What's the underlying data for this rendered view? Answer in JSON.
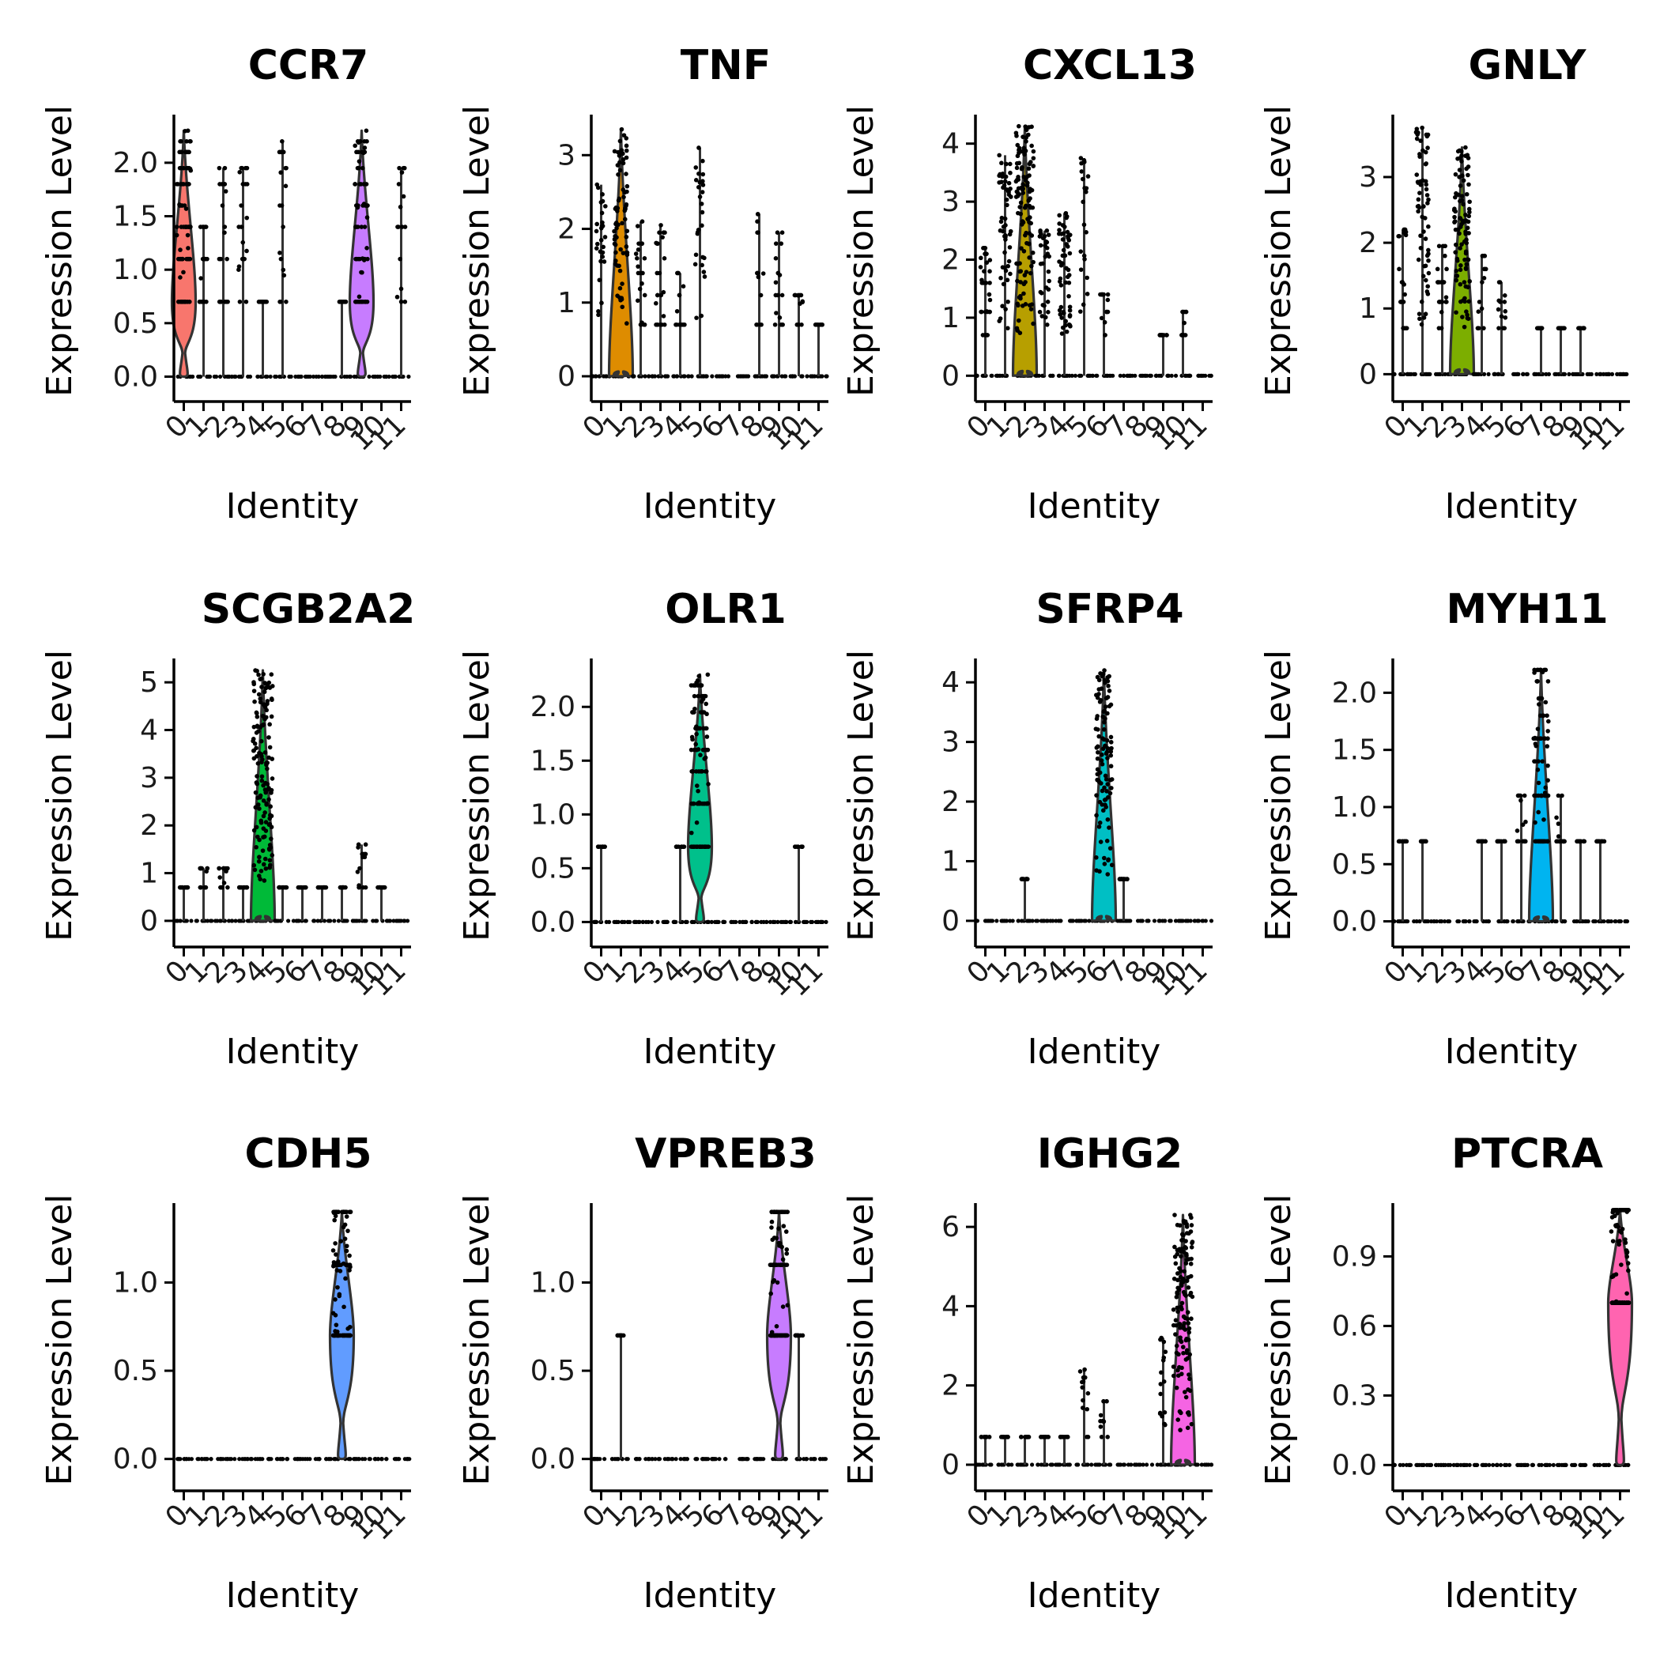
{
  "chart_data": {
    "type": "violin",
    "xlabel": "Identity",
    "ylabel": "Expression Level",
    "categories": [
      "0",
      "1",
      "2",
      "3",
      "4",
      "5",
      "6",
      "7",
      "8",
      "9",
      "10",
      "11"
    ],
    "cluster_colors": [
      "#F8766D",
      "#DE8C00",
      "#B79F00",
      "#7CAE00",
      "#00BA38",
      "#00C08B",
      "#00BFC4",
      "#00B4F0",
      "#619CFF",
      "#C77CFF",
      "#F564E3",
      "#FF64B0"
    ],
    "panels": [
      {
        "title": "CCR7",
        "ylim": [
          -0.1,
          2.45
        ],
        "ticks": [
          0,
          0.5,
          1,
          1.5,
          2
        ],
        "tick_labels": [
          "0.0",
          "0.5",
          "1.0",
          "1.5",
          "2.0"
        ],
        "max": [
          2.3,
          1.4,
          1.95,
          1.95,
          0.7,
          2.2,
          0,
          0,
          0.7,
          2.3,
          0,
          1.95
        ],
        "pct": [
          0.45,
          0.06,
          0.08,
          0.08,
          0.02,
          0.07,
          0,
          0,
          0.02,
          0.4,
          0,
          0.05
        ],
        "mode": [
          0.7,
          0,
          0,
          0,
          0,
          0,
          0,
          0,
          0,
          0.7,
          0,
          0
        ],
        "violin": [
          0,
          9
        ]
      },
      {
        "title": "TNF",
        "ylim": [
          -0.15,
          3.55
        ],
        "ticks": [
          0,
          1,
          2,
          3
        ],
        "tick_labels": [
          "0",
          "1",
          "2",
          "3"
        ],
        "max": [
          2.6,
          3.35,
          2.1,
          2.05,
          1.4,
          3.1,
          0,
          0,
          2.2,
          1.95,
          1.1,
          0.7
        ],
        "pct": [
          0.12,
          0.4,
          0.1,
          0.1,
          0.06,
          0.12,
          0,
          0,
          0.04,
          0.06,
          0.03,
          0.02
        ],
        "mode": [
          0,
          0,
          0,
          0,
          0,
          0,
          0,
          0,
          0,
          0,
          0,
          0
        ],
        "violin": [
          1
        ]
      },
      {
        "title": "CXCL13",
        "ylim": [
          -0.2,
          4.5
        ],
        "ticks": [
          0,
          1,
          2,
          3,
          4
        ],
        "tick_labels": [
          "0",
          "1",
          "2",
          "3",
          "4"
        ],
        "max": [
          2.2,
          3.8,
          4.3,
          2.5,
          2.8,
          3.75,
          1.4,
          0,
          0,
          0.7,
          1.1,
          0
        ],
        "pct": [
          0.15,
          0.3,
          0.7,
          0.15,
          0.3,
          0.08,
          0.04,
          0,
          0,
          0.02,
          0.02,
          0
        ],
        "mode": [
          0,
          0,
          0,
          0,
          0,
          0,
          0,
          0,
          0,
          0,
          0,
          0
        ],
        "violin": [
          2
        ]
      },
      {
        "title": "GNLY",
        "ylim": [
          -0.2,
          3.95
        ],
        "ticks": [
          0,
          1,
          2,
          3
        ],
        "tick_labels": [
          "0",
          "1",
          "2",
          "3"
        ],
        "max": [
          2.2,
          3.75,
          1.95,
          3.45,
          1.8,
          1.4,
          0,
          0.7,
          0.7,
          0.7,
          0,
          0
        ],
        "pct": [
          0.08,
          0.35,
          0.1,
          0.55,
          0.03,
          0.03,
          0,
          0.02,
          0.02,
          0.02,
          0,
          0
        ],
        "mode": [
          0,
          0,
          0,
          0,
          0,
          0,
          0,
          0,
          0,
          0,
          0,
          0
        ],
        "violin": [
          3
        ]
      },
      {
        "title": "SCGB2A2",
        "ylim": [
          -0.25,
          5.5
        ],
        "ticks": [
          0,
          1,
          2,
          3,
          4,
          5
        ],
        "tick_labels": [
          "0",
          "1",
          "2",
          "3",
          "4",
          "5"
        ],
        "max": [
          0.7,
          1.1,
          1.1,
          0.7,
          5.25,
          0.7,
          0.7,
          0.7,
          0.7,
          1.6,
          0.7,
          0
        ],
        "pct": [
          0.04,
          0.04,
          0.05,
          0.03,
          0.85,
          0.03,
          0.02,
          0.03,
          0.03,
          0.05,
          0.03,
          0
        ],
        "mode": [
          0,
          0,
          0,
          0,
          0,
          0,
          0,
          0,
          0,
          0,
          0,
          0
        ],
        "violin": [
          4
        ]
      },
      {
        "title": "OLR1",
        "ylim": [
          -0.1,
          2.45
        ],
        "ticks": [
          0,
          0.5,
          1,
          1.5,
          2
        ],
        "tick_labels": [
          "0.0",
          "0.5",
          "1.0",
          "1.5",
          "2.0"
        ],
        "max": [
          0.7,
          0,
          0,
          0,
          0.7,
          2.3,
          0,
          0,
          0,
          0,
          0.7,
          0
        ],
        "pct": [
          0.01,
          0,
          0,
          0,
          0.02,
          0.7,
          0,
          0,
          0,
          0,
          0.01,
          0
        ],
        "mode": [
          0,
          0,
          0,
          0,
          0,
          0.7,
          0,
          0,
          0,
          0,
          0,
          0
        ],
        "violin": [
          5
        ]
      },
      {
        "title": "SFRP4",
        "ylim": [
          -0.2,
          4.4
        ],
        "ticks": [
          0,
          1,
          2,
          3,
          4
        ],
        "tick_labels": [
          "0",
          "1",
          "2",
          "3",
          "4"
        ],
        "max": [
          0,
          0,
          0.7,
          0,
          0,
          0,
          4.2,
          0.7,
          0,
          0,
          0,
          0
        ],
        "pct": [
          0,
          0,
          0.01,
          0,
          0,
          0,
          0.6,
          0.03,
          0,
          0,
          0,
          0
        ],
        "mode": [
          0,
          0,
          0,
          0,
          0,
          0,
          0,
          0,
          0,
          0,
          0,
          0
        ],
        "violin": [
          6
        ]
      },
      {
        "title": "MYH11",
        "ylim": [
          -0.1,
          2.3
        ],
        "ticks": [
          0,
          0.5,
          1,
          1.5,
          2
        ],
        "tick_labels": [
          "0.0",
          "0.5",
          "1.0",
          "1.5",
          "2.0"
        ],
        "max": [
          0.7,
          0.7,
          0,
          0,
          0.7,
          0.7,
          1.1,
          2.2,
          1.1,
          0.7,
          0.7,
          0
        ],
        "pct": [
          0.02,
          0.02,
          0,
          0,
          0.03,
          0.03,
          0.05,
          0.5,
          0.06,
          0.03,
          0.02,
          0
        ],
        "mode": [
          0,
          0,
          0,
          0,
          0,
          0,
          0,
          0,
          0,
          0,
          0,
          0
        ],
        "violin": [
          7
        ]
      },
      {
        "title": "CDH5",
        "ylim": [
          -0.1,
          1.45
        ],
        "ticks": [
          0,
          0.5,
          1
        ],
        "tick_labels": [
          "0.0",
          "0.5",
          "1.0"
        ],
        "max": [
          0,
          0,
          0,
          0,
          0,
          0,
          0,
          0,
          1.4,
          0,
          0,
          0
        ],
        "pct": [
          0,
          0,
          0,
          0,
          0,
          0,
          0,
          0,
          0.7,
          0,
          0,
          0
        ],
        "mode": [
          0,
          0,
          0,
          0,
          0,
          0,
          0,
          0,
          0.7,
          0,
          0,
          0
        ],
        "violin": [
          8
        ]
      },
      {
        "title": "VPREB3",
        "ylim": [
          -0.1,
          1.45
        ],
        "ticks": [
          0,
          0.5,
          1
        ],
        "tick_labels": [
          "0.0",
          "0.5",
          "1.0"
        ],
        "max": [
          0,
          0.7,
          0,
          0,
          0,
          0,
          0,
          0,
          0,
          1.4,
          0.7,
          0
        ],
        "pct": [
          0,
          0.01,
          0,
          0,
          0,
          0,
          0,
          0,
          0,
          0.7,
          0.02,
          0
        ],
        "mode": [
          0,
          0,
          0,
          0,
          0,
          0,
          0,
          0,
          0,
          0.7,
          0,
          0
        ],
        "violin": [
          9
        ]
      },
      {
        "title": "IGHG2",
        "ylim": [
          -0.3,
          6.6
        ],
        "ticks": [
          0,
          2,
          4,
          6
        ],
        "tick_labels": [
          "0",
          "2",
          "4",
          "6"
        ],
        "max": [
          0.7,
          0.7,
          0.7,
          0.7,
          0.7,
          2.4,
          1.6,
          0,
          0,
          3.2,
          6.3,
          0
        ],
        "pct": [
          0.02,
          0.02,
          0.02,
          0.02,
          0.02,
          0.03,
          0.02,
          0,
          0,
          0.05,
          0.8,
          0
        ],
        "mode": [
          0,
          0,
          0,
          0,
          0,
          0,
          0,
          0,
          0,
          0,
          0,
          0
        ],
        "violin": [
          10
        ]
      },
      {
        "title": "PTCRA",
        "ylim": [
          -0.05,
          1.13
        ],
        "ticks": [
          0,
          0.3,
          0.6,
          0.9
        ],
        "tick_labels": [
          "0.0",
          "0.3",
          "0.6",
          "0.9"
        ],
        "max": [
          0,
          0,
          0,
          0,
          0,
          0,
          0,
          0,
          0,
          0,
          0,
          1.1
        ],
        "pct": [
          0,
          0,
          0,
          0,
          0,
          0,
          0,
          0,
          0,
          0,
          0,
          0.7
        ],
        "mode": [
          0,
          0,
          0,
          0,
          0,
          0,
          0,
          0,
          0,
          0,
          0,
          0.7
        ],
        "violin": [
          11
        ]
      }
    ]
  }
}
